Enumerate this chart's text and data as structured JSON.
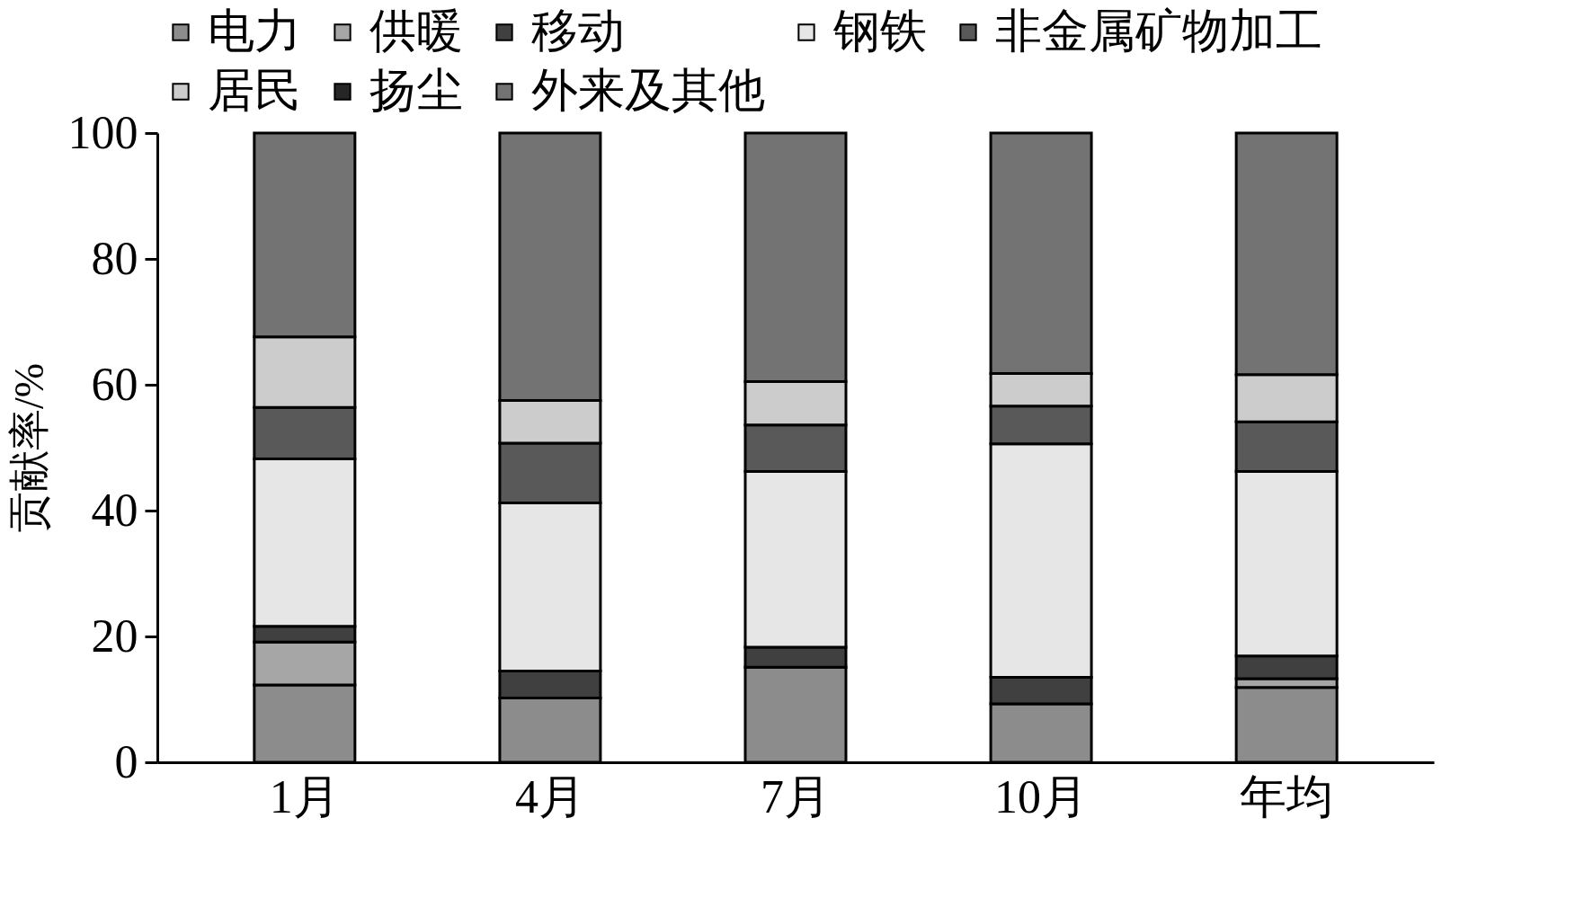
{
  "chart_data": {
    "type": "bar",
    "stacked": true,
    "ylabel": "贡献率/%",
    "categories": [
      "1月",
      "4月",
      "7月",
      "10月",
      "年均"
    ],
    "series": [
      {
        "name": "电力",
        "color": "#8c8c8c",
        "values": [
          12.3,
          10.2,
          15.1,
          9.3,
          11.9
        ]
      },
      {
        "name": "供暖",
        "color": "#a6a6a6",
        "values": [
          6.8,
          0,
          0,
          0,
          1.4
        ]
      },
      {
        "name": "移动",
        "color": "#404040",
        "values": [
          2.5,
          4.3,
          3.2,
          4.2,
          3.6
        ]
      },
      {
        "name": "钢铁",
        "color": "#e6e6e6",
        "values": [
          26.6,
          26.7,
          27.9,
          37.1,
          29.3
        ]
      },
      {
        "name": "非金属矿物加工",
        "color": "#595959",
        "values": [
          8.2,
          9.5,
          7.4,
          6.0,
          7.9
        ]
      },
      {
        "name": "居民",
        "color": "#cccccc",
        "values": [
          11.2,
          6.8,
          6.9,
          5.2,
          7.5
        ]
      },
      {
        "name": "扬尘",
        "color": "#262626",
        "values": [
          0,
          0,
          0,
          0,
          0
        ]
      },
      {
        "name": "外来及其他",
        "color": "#737373",
        "values": [
          32.4,
          42.5,
          39.5,
          38.2,
          38.4
        ]
      }
    ],
    "ylim": [
      0,
      100
    ],
    "yticks": [
      0,
      20,
      40,
      60,
      80,
      100
    ],
    "grid": false,
    "legend": "top"
  }
}
